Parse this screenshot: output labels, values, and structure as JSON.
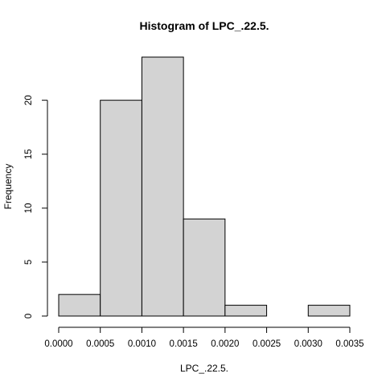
{
  "chart_data": {
    "type": "bar",
    "title": "Histogram of LPC_.22.5.",
    "xlabel": "LPC_.22.5.",
    "ylabel": "Frequency",
    "bins": [
      {
        "from": 0.0,
        "to": 0.0005,
        "count": 2
      },
      {
        "from": 0.0005,
        "to": 0.001,
        "count": 20
      },
      {
        "from": 0.001,
        "to": 0.0015,
        "count": 24
      },
      {
        "from": 0.0015,
        "to": 0.002,
        "count": 9
      },
      {
        "from": 0.002,
        "to": 0.0025,
        "count": 1
      },
      {
        "from": 0.0025,
        "to": 0.003,
        "count": 0
      },
      {
        "from": 0.003,
        "to": 0.0035,
        "count": 1
      }
    ],
    "xlim": [
      0.0,
      0.0035
    ],
    "ylim": [
      0,
      24
    ],
    "x_ticks": [
      "0.0000",
      "0.0005",
      "0.0010",
      "0.0015",
      "0.0020",
      "0.0025",
      "0.0030",
      "0.0035"
    ],
    "y_ticks": [
      "0",
      "5",
      "10",
      "15",
      "20"
    ],
    "grid": false,
    "colors": {
      "bar_fill": "#d3d3d3",
      "bar_stroke": "#000000"
    }
  }
}
